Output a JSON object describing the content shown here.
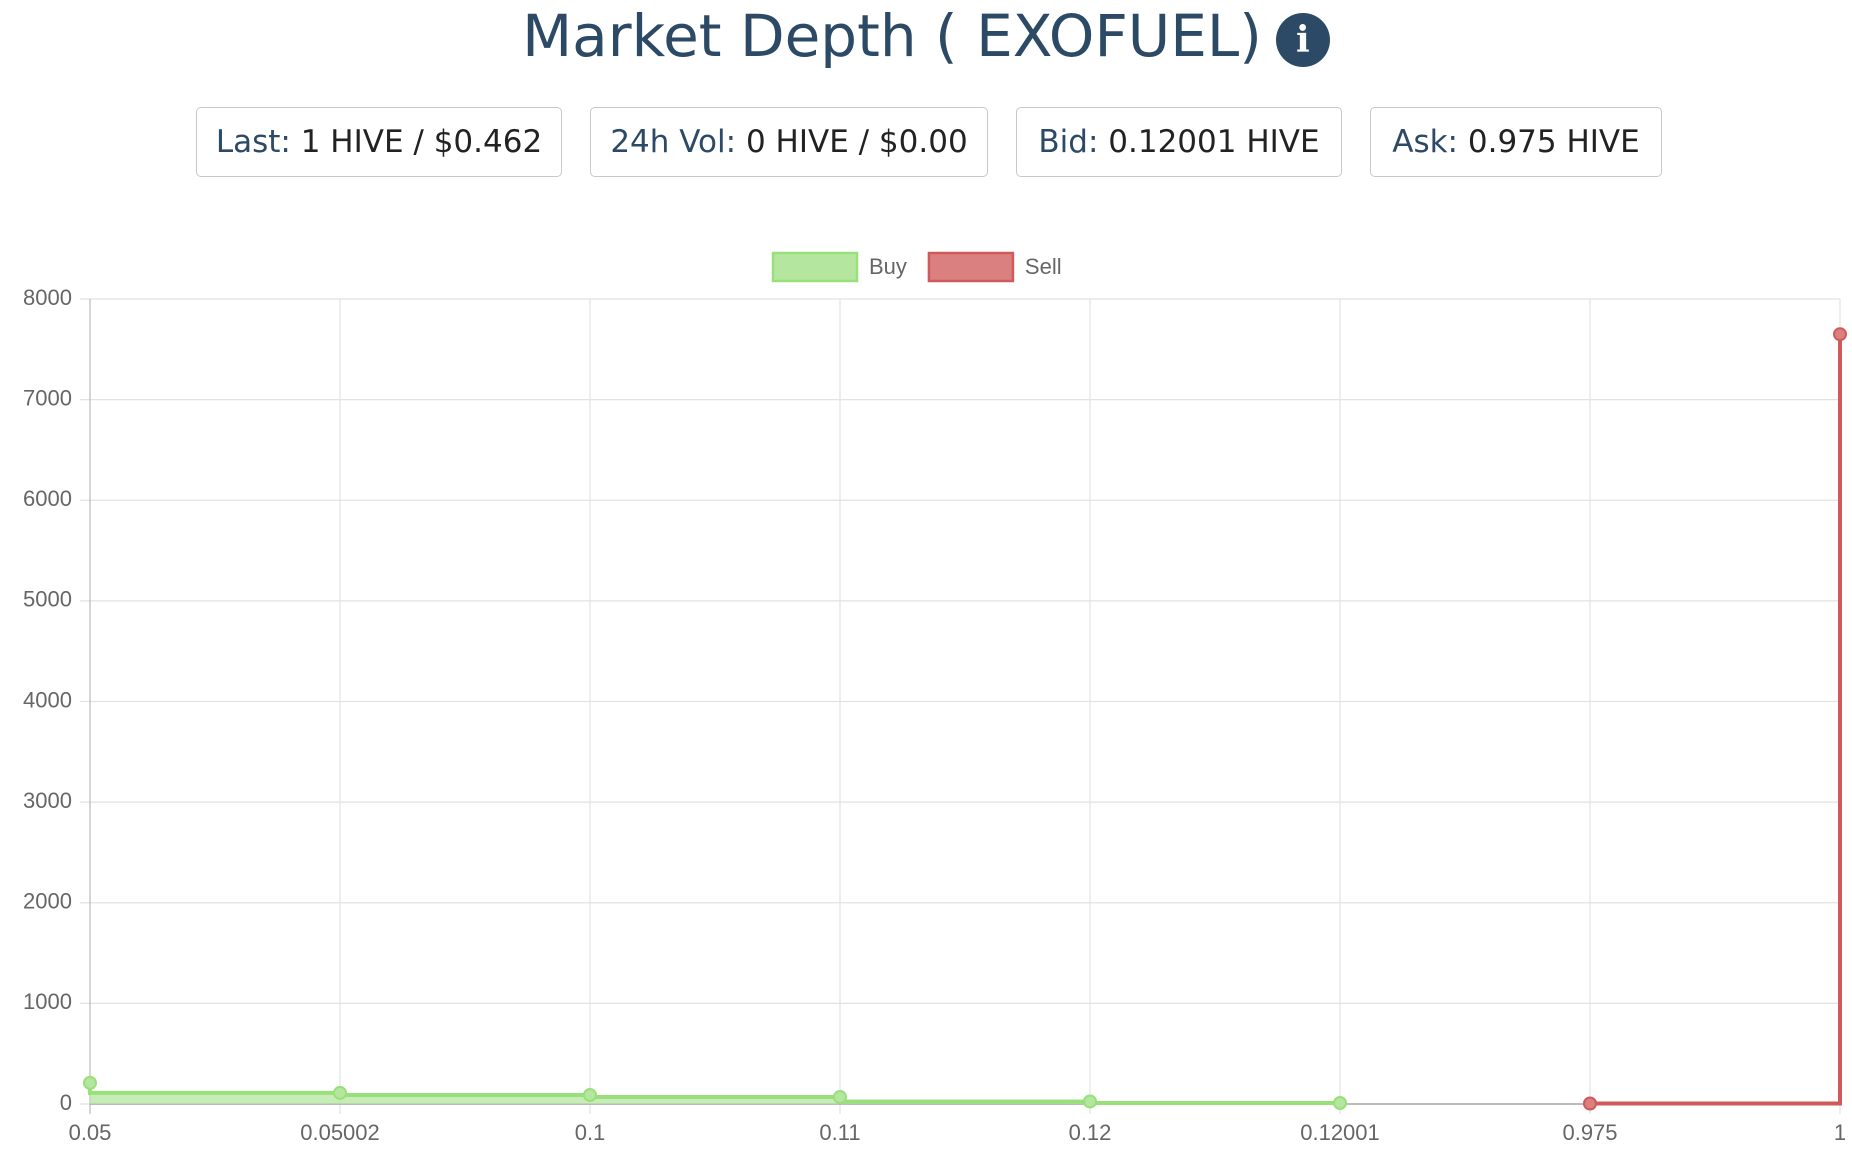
{
  "header": {
    "title": "Market Depth ( EXOFUEL)"
  },
  "stats": [
    {
      "label": "Last:",
      "value": "1 HIVE / $0.462"
    },
    {
      "label": "24h Vol:",
      "value": "0 HIVE / $0.00"
    },
    {
      "label": "Bid:",
      "value": "0.12001 HIVE"
    },
    {
      "label": "Ask:",
      "value": "0.975 HIVE"
    }
  ],
  "chart_data": {
    "type": "line",
    "categories": [
      "0.05",
      "0.05002",
      "0.1",
      "0.11",
      "0.12",
      "0.12001",
      "0.975",
      "1"
    ],
    "series": [
      {
        "name": "Buy",
        "color": "#98e07a",
        "fill": "#b5e6a0",
        "step": "before",
        "values": [
          210,
          110,
          90,
          70,
          25,
          10,
          null,
          null
        ]
      },
      {
        "name": "Sell",
        "color": "#d05a5a",
        "fill": "#db8080",
        "step": "after",
        "values": [
          null,
          null,
          null,
          null,
          null,
          null,
          5,
          7650
        ]
      }
    ],
    "ylim": [
      0,
      8000
    ],
    "yticks": [
      0,
      1000,
      2000,
      3000,
      4000,
      5000,
      6000,
      7000,
      8000
    ],
    "grid": true,
    "legend": "top"
  }
}
